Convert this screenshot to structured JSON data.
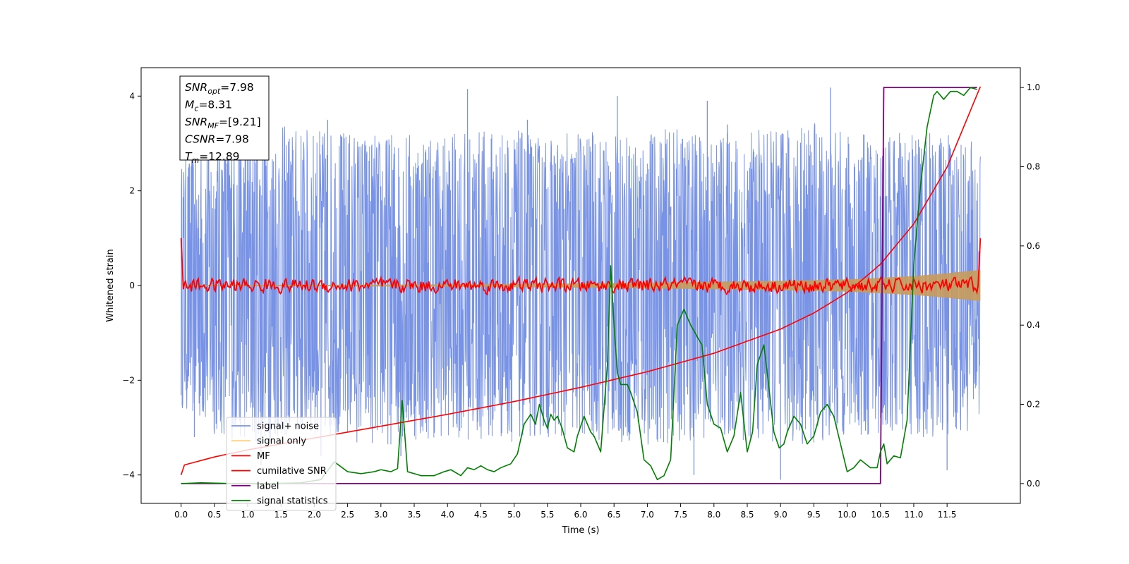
{
  "chart_data": {
    "type": "line",
    "xlabel": "Time (s)",
    "ylabel": "Whitened strain",
    "xlim": [
      -0.6,
      12.6
    ],
    "ylim": [
      -4.6,
      4.6
    ],
    "y2lim": [
      -0.05,
      1.05
    ],
    "x_ticks": [
      0.0,
      0.5,
      1.0,
      1.5,
      2.0,
      2.5,
      3.0,
      3.5,
      4.0,
      4.5,
      5.0,
      5.5,
      6.0,
      6.5,
      7.0,
      7.5,
      8.0,
      8.5,
      9.0,
      9.5,
      10.0,
      10.5,
      11.0,
      11.5
    ],
    "x_tick_labels": [
      "0.0",
      "0.5",
      "1.0",
      "1.5",
      "2.0",
      "2.5",
      "3.0",
      "3.5",
      "4.0",
      "4.5",
      "5.0",
      "5.5",
      "6.0",
      "6.5",
      "7.0",
      "7.5",
      "8.0",
      "8.5",
      "9.0",
      "9.5",
      "10.0",
      "10.5",
      "11.0",
      "11.5"
    ],
    "y_ticks": [
      -4,
      -2,
      0,
      2,
      4
    ],
    "y_tick_labels": [
      "−4",
      "−2",
      "0",
      "2",
      "4"
    ],
    "y2_ticks": [
      0.0,
      0.2,
      0.4,
      0.6,
      0.8,
      1.0
    ],
    "y2_tick_labels": [
      "0.0",
      "0.2",
      "0.4",
      "0.6",
      "0.8",
      "1.0"
    ],
    "annotation": [
      {
        "sym": "SNR",
        "sub": "opt",
        "value": "=7.98"
      },
      {
        "sym": "M",
        "sub": "c",
        "value": "=8.31"
      },
      {
        "sym": "SNR",
        "sub": "MF",
        "value": "=[9.21]"
      },
      {
        "sym": "CSNR",
        "sub": "",
        "value": "=7.98"
      },
      {
        "sym": "T",
        "sub": "m",
        "value": "=12.89"
      }
    ],
    "legend_placement": "lower-left",
    "series": [
      {
        "name": "signal+ noise",
        "color": "#7893e6",
        "axis": "left",
        "x_range": [
          0.0,
          12.0
        ],
        "envelope_max": [
          2.6,
          3.3,
          3.3,
          3.4,
          3.3,
          3.3,
          3.2,
          3.3,
          3.2,
          3.3,
          3.3,
          3.1,
          3.3,
          3.2,
          3.3,
          3.3,
          3.2,
          3.3,
          3.3,
          3.5,
          3.2,
          3.2,
          3.3,
          3.2,
          3.0
        ],
        "envelope_min": [
          -2.6,
          -3.2,
          -3.3,
          -3.3,
          -3.2,
          -3.3,
          -3.4,
          -3.3,
          -3.2,
          -3.3,
          -3.3,
          -3.2,
          -3.3,
          -3.3,
          -3.4,
          -3.3,
          -3.2,
          -3.3,
          -3.3,
          -3.4,
          -3.2,
          -3.2,
          -3.3,
          -3.2,
          -3.0
        ],
        "spikes": [
          [
            4.3,
            4.15
          ],
          [
            9.75,
            4.18
          ],
          [
            6.55,
            4.0
          ],
          [
            7.9,
            3.9
          ],
          [
            9.0,
            -4.1
          ],
          [
            7.7,
            -4.0
          ],
          [
            1.2,
            -3.8
          ],
          [
            2.1,
            -3.6
          ],
          [
            3.3,
            -3.6
          ],
          [
            11.5,
            -3.9
          ],
          [
            10.55,
            2.9
          ],
          [
            5.2,
            3.5
          ],
          [
            2.2,
            3.5
          ],
          [
            8.2,
            3.4
          ],
          [
            0.2,
            -3.2
          ]
        ]
      },
      {
        "name": "signal only",
        "color": "#f5c066",
        "axis": "left",
        "x": [
          0.0,
          2.0,
          4.0,
          6.0,
          7.0,
          8.0,
          9.0,
          10.0,
          11.0,
          11.5,
          12.0
        ],
        "amplitude": [
          0.01,
          0.015,
          0.025,
          0.045,
          0.06,
          0.08,
          0.1,
          0.13,
          0.2,
          0.26,
          0.33
        ]
      },
      {
        "name": "MF",
        "color": "#ff0000",
        "axis": "left",
        "x_range": [
          0.0,
          12.0
        ],
        "start": 1.0,
        "end": 1.0,
        "noise_amplitude": 0.15
      },
      {
        "name": "cumilative SNR",
        "color": "#ff0000",
        "axis": "left",
        "x": [
          0.0,
          0.02,
          0.5,
          1.0,
          2.0,
          3.0,
          4.0,
          5.0,
          6.0,
          7.0,
          8.0,
          9.0,
          9.5,
          10.0,
          10.5,
          11.0,
          11.5,
          12.0
        ],
        "values": [
          -4.0,
          -3.8,
          -3.62,
          -3.47,
          -3.22,
          -2.97,
          -2.72,
          -2.45,
          -2.15,
          -1.82,
          -1.43,
          -0.92,
          -0.58,
          -0.15,
          0.45,
          1.3,
          2.5,
          4.2
        ]
      },
      {
        "name": "label",
        "color": "#800080",
        "axis": "right",
        "x": [
          0.0,
          10.5,
          10.55,
          11.95
        ],
        "values": [
          0.0,
          0.0,
          1.0,
          1.0
        ]
      },
      {
        "name": "signal statistics",
        "color": "#008000",
        "axis": "right",
        "x": [
          0.0,
          0.3,
          0.8,
          1.3,
          1.8,
          2.1,
          2.3,
          2.5,
          2.7,
          2.9,
          3.0,
          3.15,
          3.25,
          3.32,
          3.4,
          3.6,
          3.8,
          3.95,
          4.05,
          4.2,
          4.3,
          4.4,
          4.5,
          4.6,
          4.7,
          4.8,
          4.95,
          5.05,
          5.15,
          5.25,
          5.32,
          5.38,
          5.45,
          5.5,
          5.55,
          5.6,
          5.65,
          5.72,
          5.8,
          5.9,
          5.95,
          6.05,
          6.15,
          6.2,
          6.3,
          6.4,
          6.45,
          6.5,
          6.55,
          6.6,
          6.7,
          6.75,
          6.85,
          6.95,
          7.05,
          7.15,
          7.25,
          7.35,
          7.45,
          7.55,
          7.65,
          7.72,
          7.75,
          7.82,
          7.9,
          8.0,
          8.1,
          8.2,
          8.3,
          8.4,
          8.5,
          8.58,
          8.65,
          8.75,
          8.82,
          8.9,
          8.98,
          9.05,
          9.1,
          9.2,
          9.3,
          9.4,
          9.5,
          9.6,
          9.7,
          9.8,
          9.9,
          10.0,
          10.1,
          10.2,
          10.35,
          10.45,
          10.5,
          10.55,
          10.6,
          10.7,
          10.8,
          10.9,
          11.0,
          11.1,
          11.2,
          11.3,
          11.35,
          11.45,
          11.55,
          11.65,
          11.75,
          11.85,
          11.95
        ],
        "values": [
          0.0,
          0.002,
          0.0,
          0.0,
          0.002,
          0.01,
          0.055,
          0.03,
          0.025,
          0.03,
          0.035,
          0.03,
          0.038,
          0.21,
          0.03,
          0.02,
          0.02,
          0.03,
          0.035,
          0.02,
          0.04,
          0.035,
          0.045,
          0.035,
          0.03,
          0.04,
          0.05,
          0.075,
          0.15,
          0.175,
          0.15,
          0.2,
          0.16,
          0.14,
          0.175,
          0.16,
          0.17,
          0.14,
          0.09,
          0.08,
          0.12,
          0.17,
          0.13,
          0.12,
          0.08,
          0.3,
          0.55,
          0.4,
          0.28,
          0.25,
          0.25,
          0.23,
          0.18,
          0.06,
          0.045,
          0.01,
          0.02,
          0.06,
          0.4,
          0.44,
          0.4,
          0.38,
          0.37,
          0.35,
          0.2,
          0.15,
          0.14,
          0.08,
          0.12,
          0.23,
          0.08,
          0.13,
          0.3,
          0.35,
          0.25,
          0.13,
          0.09,
          0.1,
          0.13,
          0.17,
          0.15,
          0.1,
          0.12,
          0.18,
          0.2,
          0.17,
          0.1,
          0.03,
          0.04,
          0.06,
          0.04,
          0.04,
          0.08,
          0.1,
          0.05,
          0.07,
          0.065,
          0.16,
          0.55,
          0.75,
          0.9,
          0.98,
          0.99,
          0.97,
          0.99,
          0.99,
          0.98,
          1.0,
          0.995
        ]
      }
    ]
  }
}
